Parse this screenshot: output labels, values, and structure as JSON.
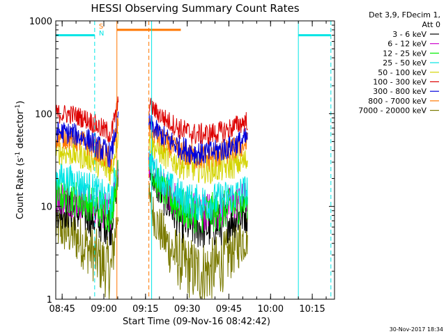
{
  "chart_data": {
    "type": "line",
    "title": "HESSI Observing Summary Count Rates",
    "xlabel": "Start Time (09-Nov-16 08:42:42)",
    "ylabel_main": "Count Rate (s",
    "ylabel_sup1": "-1",
    "ylabel_mid": " detector",
    "ylabel_sup2": "-1",
    "ylabel_end": ")",
    "y_scale": "log",
    "ylim": [
      1,
      1000
    ],
    "xlim": [
      "08:42:42",
      "10:23:00"
    ],
    "x_ticks": [
      "08:45",
      "09:00",
      "09:15",
      "09:30",
      "09:45",
      "10:00",
      "10:15"
    ],
    "y_ticks": [
      "1",
      "10",
      "100",
      "1000"
    ],
    "grid": false,
    "legend_header": [
      "Det 3,9, FDecim 1,",
      "Att 0"
    ],
    "legend_placement": "right",
    "markers": {
      "s_label": "S",
      "n_label": "N"
    },
    "timestamp": "30-Nov-2017 18:34",
    "series": [
      {
        "name": "3 - 6 keV",
        "color": "#000000",
        "seg1": [
          [
            0,
            9.5
          ],
          [
            6,
            9
          ],
          [
            12,
            8
          ],
          [
            16,
            7
          ],
          [
            20,
            6.5
          ],
          [
            21,
            12
          ],
          [
            22.5,
            20
          ]
        ],
        "seg2": [
          [
            33.5,
            26
          ],
          [
            36,
            17
          ],
          [
            40,
            11
          ],
          [
            45,
            7
          ],
          [
            50,
            6
          ],
          [
            55,
            6
          ],
          [
            60,
            6.5
          ],
          [
            64,
            7.5
          ],
          [
            69,
            8.5
          ]
        ]
      },
      {
        "name": "6 - 12 keV",
        "color": "#cc00cc",
        "seg1": [
          [
            0,
            13
          ],
          [
            6,
            12
          ],
          [
            12,
            11
          ],
          [
            16,
            9.5
          ],
          [
            20,
            9
          ],
          [
            21,
            15
          ],
          [
            22.5,
            25
          ]
        ],
        "seg2": [
          [
            33.5,
            30
          ],
          [
            36,
            20
          ],
          [
            40,
            14
          ],
          [
            45,
            10
          ],
          [
            50,
            9
          ],
          [
            55,
            9
          ],
          [
            60,
            9.5
          ],
          [
            64,
            10.5
          ],
          [
            69,
            12
          ]
        ]
      },
      {
        "name": "12 - 25 keV",
        "color": "#00ee00",
        "seg1": [
          [
            0,
            14
          ],
          [
            6,
            12.5
          ],
          [
            12,
            11
          ],
          [
            16,
            9.5
          ],
          [
            20,
            8.5
          ],
          [
            21,
            14
          ],
          [
            22.5,
            24
          ]
        ],
        "seg2": [
          [
            33.5,
            28
          ],
          [
            36,
            19
          ],
          [
            40,
            13
          ],
          [
            45,
            9.5
          ],
          [
            50,
            8.5
          ],
          [
            55,
            8.5
          ],
          [
            60,
            9
          ],
          [
            64,
            10
          ],
          [
            69,
            11.5
          ]
        ]
      },
      {
        "name": "25 - 50 keV",
        "color": "#00e5e5",
        "seg1": [
          [
            0,
            21
          ],
          [
            6,
            19
          ],
          [
            12,
            16
          ],
          [
            16,
            13
          ],
          [
            20,
            11
          ],
          [
            21,
            18
          ],
          [
            22.5,
            30
          ]
        ],
        "seg2": [
          [
            33.5,
            34
          ],
          [
            36,
            24
          ],
          [
            40,
            17
          ],
          [
            45,
            12.5
          ],
          [
            50,
            11
          ],
          [
            55,
            11
          ],
          [
            60,
            12
          ],
          [
            64,
            13
          ],
          [
            69,
            15
          ]
        ]
      },
      {
        "name": "50 - 100 keV",
        "color": "#d4d400",
        "seg1": [
          [
            0,
            39
          ],
          [
            6,
            37
          ],
          [
            12,
            33
          ],
          [
            16,
            28
          ],
          [
            20,
            24
          ],
          [
            21,
            35
          ],
          [
            22.5,
            60
          ]
        ],
        "seg2": [
          [
            33.5,
            50
          ],
          [
            36,
            42
          ],
          [
            40,
            34
          ],
          [
            45,
            28
          ],
          [
            50,
            26
          ],
          [
            55,
            25
          ],
          [
            60,
            26
          ],
          [
            64,
            28
          ],
          [
            69,
            31
          ]
        ]
      },
      {
        "name": "100 - 300 keV",
        "color": "#dd0000",
        "seg1": [
          [
            0,
            100
          ],
          [
            6,
            98
          ],
          [
            12,
            85
          ],
          [
            16,
            70
          ],
          [
            20,
            60
          ],
          [
            21,
            85
          ],
          [
            22.5,
            130
          ]
        ],
        "seg2": [
          [
            33.5,
            125
          ],
          [
            36,
            105
          ],
          [
            40,
            85
          ],
          [
            45,
            68
          ],
          [
            50,
            60
          ],
          [
            55,
            60
          ],
          [
            60,
            64
          ],
          [
            64,
            72
          ],
          [
            69,
            85
          ]
        ]
      },
      {
        "name": "300 - 800 keV",
        "color": "#0000dd",
        "seg1": [
          [
            0,
            64
          ],
          [
            6,
            61
          ],
          [
            12,
            52
          ],
          [
            16,
            42
          ],
          [
            20,
            35
          ],
          [
            21,
            55
          ],
          [
            22.5,
            90
          ]
        ],
        "seg2": [
          [
            33.5,
            80
          ],
          [
            36,
            66
          ],
          [
            40,
            53
          ],
          [
            45,
            43
          ],
          [
            50,
            38
          ],
          [
            55,
            38
          ],
          [
            60,
            41
          ],
          [
            64,
            46
          ],
          [
            69,
            54
          ]
        ]
      },
      {
        "name": "800 - 7000 keV",
        "color": "#ff7700",
        "seg1": [
          [
            0,
            56
          ],
          [
            6,
            54
          ],
          [
            12,
            46
          ],
          [
            16,
            38
          ],
          [
            20,
            31
          ],
          [
            21,
            48
          ],
          [
            22.5,
            80
          ]
        ],
        "seg2": [
          [
            33.5,
            70
          ],
          [
            36,
            59
          ],
          [
            40,
            47
          ],
          [
            45,
            38
          ],
          [
            50,
            34
          ],
          [
            55,
            34
          ],
          [
            60,
            37
          ],
          [
            64,
            41
          ],
          [
            69,
            48
          ]
        ]
      },
      {
        "name": "7000 - 20000 keV",
        "color": "#7a7a00",
        "seg1": [
          [
            0,
            6
          ],
          [
            6,
            5
          ],
          [
            12,
            3.5
          ],
          [
            16,
            2.5
          ],
          [
            20,
            2
          ],
          [
            21,
            4
          ],
          [
            22.5,
            10
          ]
        ],
        "seg2": [
          [
            33.5,
            12
          ],
          [
            36,
            7
          ],
          [
            40,
            4
          ],
          [
            45,
            2.5
          ],
          [
            50,
            2
          ],
          [
            55,
            2
          ],
          [
            60,
            2.5
          ],
          [
            64,
            3.5
          ],
          [
            69,
            5
          ]
        ]
      }
    ]
  }
}
